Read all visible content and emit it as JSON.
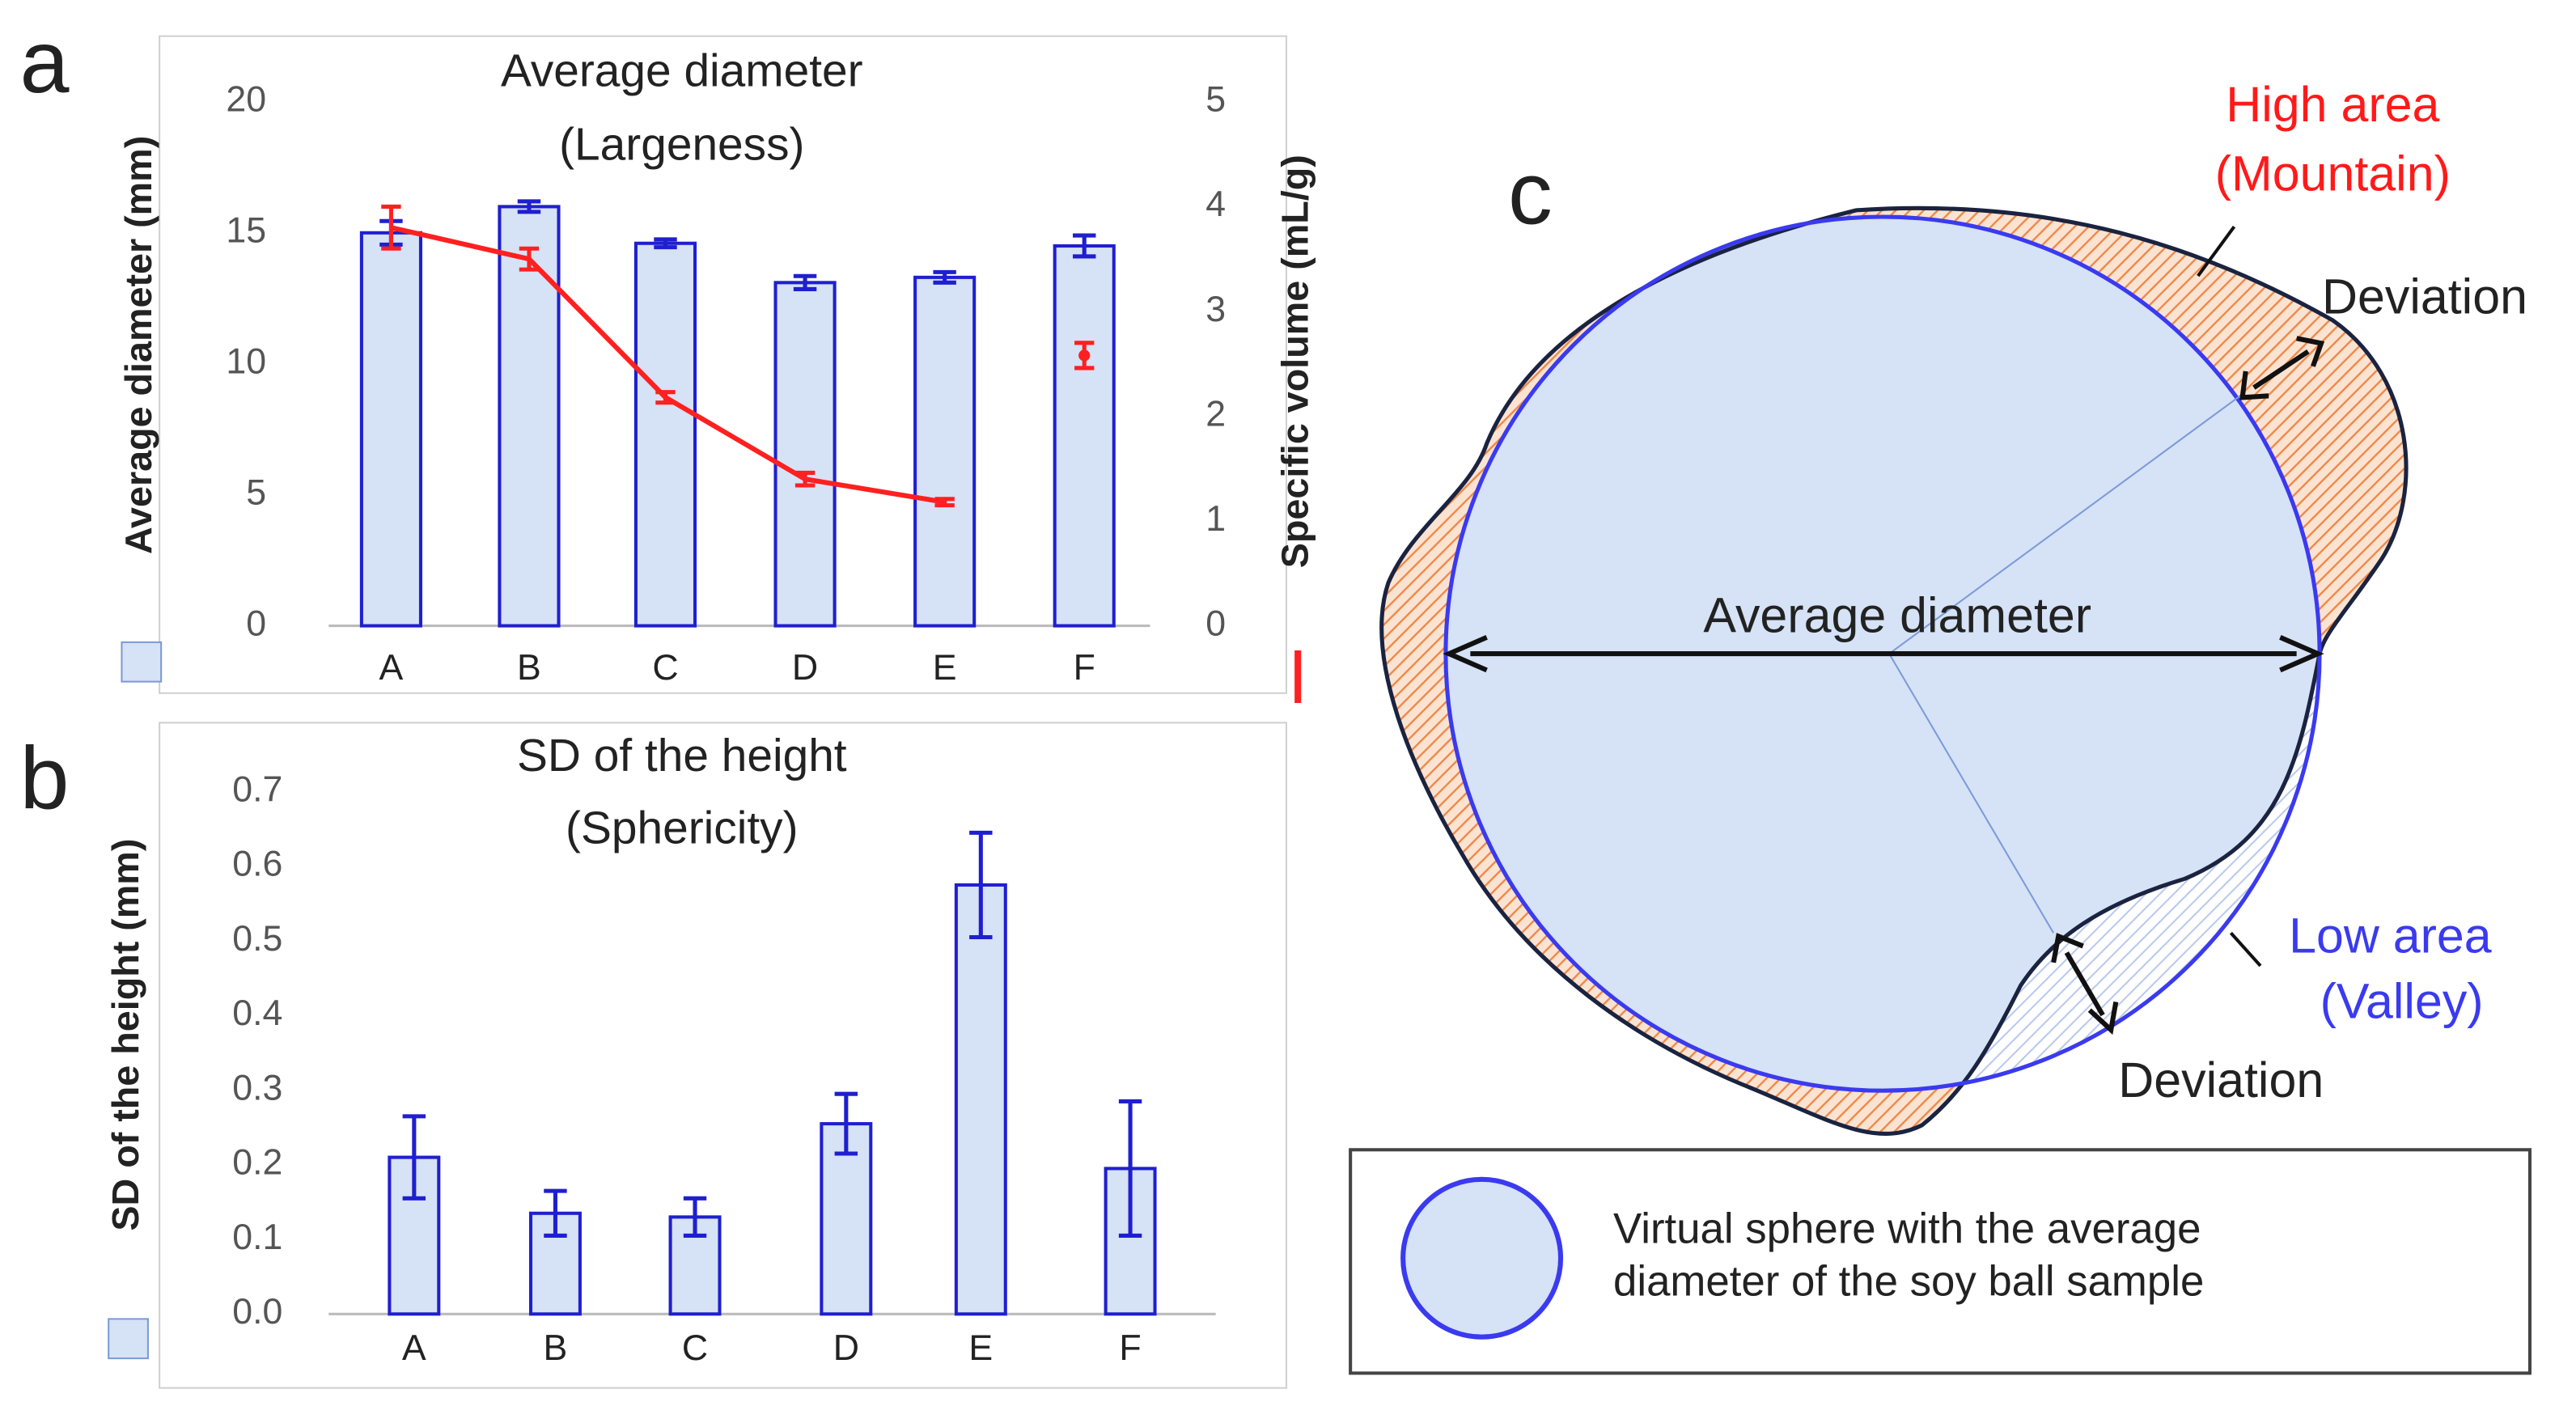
{
  "panel_labels": [
    "a",
    "b",
    "c"
  ],
  "chart_data": [
    {
      "type": "bar",
      "title": [
        "Average diameter",
        "(Largeness)"
      ],
      "categories": [
        "A",
        "B",
        "C",
        "D",
        "E",
        "F"
      ],
      "ylabel": "Average diameter (mm)",
      "y2label": "Specific volume (mL/g)",
      "ylim": [
        0,
        20
      ],
      "yticks": [
        0,
        5,
        10,
        15,
        20
      ],
      "y2lim": [
        0,
        5
      ],
      "y2ticks": [
        0,
        1,
        2,
        3,
        4,
        5
      ],
      "series": [
        {
          "type": "bar",
          "color": "#1f1fd0",
          "fill": "#d6e2f5",
          "values": [
            15.0,
            16.0,
            14.6,
            13.1,
            13.3,
            14.5
          ],
          "errors": [
            0.45,
            0.2,
            0.15,
            0.25,
            0.2,
            0.4
          ]
        },
        {
          "type": "line",
          "axis": "y2",
          "color": "#ff2020",
          "values": [
            3.8,
            3.5,
            2.18,
            1.4,
            1.18,
            null
          ],
          "errors": [
            0.2,
            0.1,
            0.05,
            0.06,
            0.03,
            null
          ]
        },
        {
          "type": "point",
          "axis": "y2",
          "color": "#ff2020",
          "values": [
            null,
            null,
            null,
            null,
            null,
            2.58
          ],
          "errors": [
            null,
            null,
            null,
            null,
            null,
            0.12
          ]
        }
      ]
    },
    {
      "type": "bar",
      "title": [
        "SD of the height",
        "(Sphericity)"
      ],
      "categories": [
        "A",
        "B",
        "C",
        "D",
        "E",
        "F"
      ],
      "ylabel": "SD of the height (mm)",
      "ylim": [
        0,
        0.7
      ],
      "yticks": [
        {
          "value": 0,
          "label": "0.0"
        },
        0.1,
        0.2,
        0.3,
        0.4,
        0.5,
        0.6,
        0.7
      ],
      "series": [
        {
          "type": "bar",
          "color": "#1f1fd0",
          "fill": "#d6e2f5",
          "values": [
            0.21,
            0.135,
            0.13,
            0.255,
            0.575,
            0.195
          ],
          "errors": [
            0.055,
            0.03,
            0.025,
            0.04,
            0.07,
            0.09
          ]
        }
      ]
    }
  ],
  "diagram": {
    "high": [
      "High area",
      "(Mountain)"
    ],
    "deviation_top": "Deviation",
    "average": "Average diameter",
    "low": [
      "Low area",
      "(Valley)"
    ],
    "deviation_bottom": "Deviation",
    "legend": [
      "Virtual sphere with the average",
      "diameter of the soy ball sample"
    ]
  }
}
